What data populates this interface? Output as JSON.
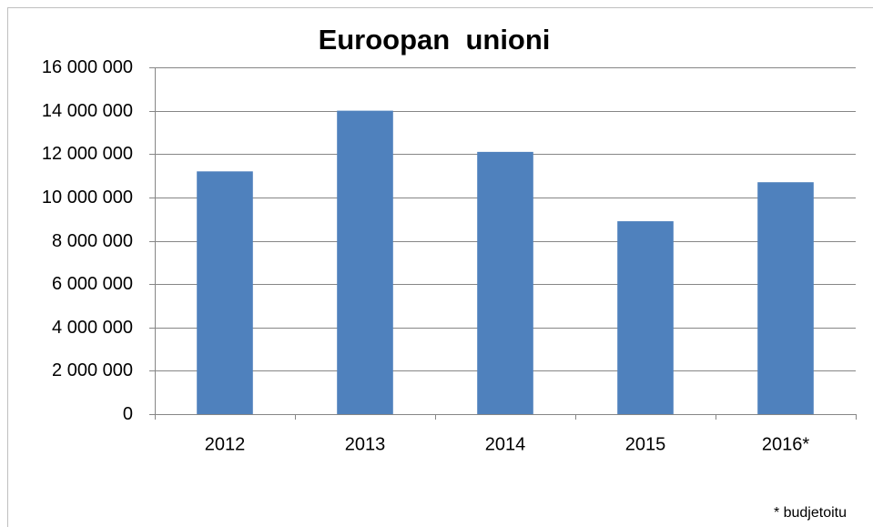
{
  "chart_data": {
    "type": "bar",
    "title": "Euroopan  unioni",
    "categories": [
      "2012",
      "2013",
      "2014",
      "2015",
      "2016*"
    ],
    "values": [
      11200000,
      14000000,
      12100000,
      8900000,
      10700000
    ],
    "color": "#4f81bd",
    "ylim": [
      0,
      16000000
    ],
    "yticks": [
      0,
      {
        "value": 2000000,
        "label": "2 000 000"
      },
      {
        "value": 4000000,
        "label": "4 000 000"
      },
      {
        "value": 6000000,
        "label": "6 000 000"
      },
      {
        "value": 8000000,
        "label": "8 000 000"
      },
      {
        "value": 10000000,
        "label": "10 000 000"
      },
      {
        "value": 12000000,
        "label": "12 000 000"
      },
      {
        "value": 14000000,
        "label": "14 000 000"
      },
      {
        "value": 16000000,
        "label": "16 000 000"
      }
    ],
    "grid": true,
    "annotation": "* budjetoitu"
  }
}
